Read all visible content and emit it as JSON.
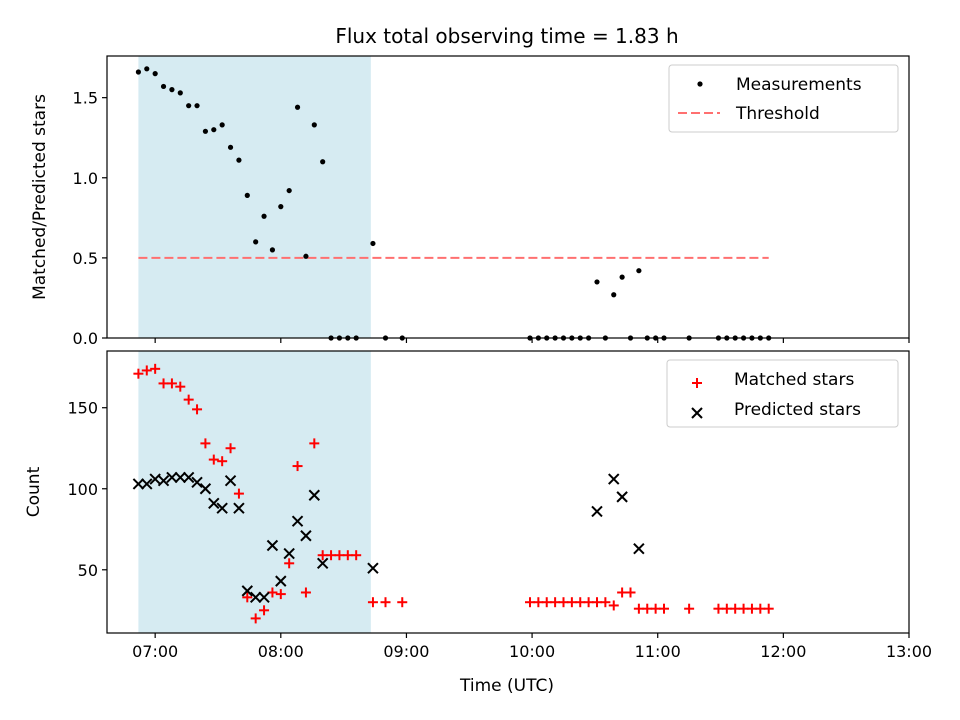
{
  "chart_data": [
    {
      "type": "scatter",
      "title": "Flux total observing time = 1.83 h",
      "xlabel": "",
      "ylabel": "Matched/Predicted stars",
      "x_ticks": [
        "07:00",
        "08:00",
        "09:00",
        "10:00",
        "11:00",
        "12:00",
        "13:00"
      ],
      "ylim": [
        0,
        1.76
      ],
      "y_ticks": [
        "0.0",
        "0.5",
        "1.0",
        "1.5"
      ],
      "xlim": [
        "06:37",
        "13:00"
      ],
      "shaded_region": {
        "from": "06:52",
        "to": "08:43",
        "color": "#add8e6"
      },
      "legend": {
        "placement": "top-right",
        "entries": [
          "Measurements",
          "Threshold"
        ]
      },
      "series": [
        {
          "name": "Measurements",
          "marker": "dot",
          "color": "#000000",
          "points": [
            [
              "06:52",
              1.66
            ],
            [
              "06:56",
              1.68
            ],
            [
              "07:00",
              1.65
            ],
            [
              "07:04",
              1.57
            ],
            [
              "07:08",
              1.55
            ],
            [
              "07:12",
              1.53
            ],
            [
              "07:16",
              1.45
            ],
            [
              "07:20",
              1.45
            ],
            [
              "07:24",
              1.29
            ],
            [
              "07:28",
              1.3
            ],
            [
              "07:32",
              1.33
            ],
            [
              "07:36",
              1.19
            ],
            [
              "07:40",
              1.11
            ],
            [
              "07:44",
              0.89
            ],
            [
              "07:48",
              0.6
            ],
            [
              "07:52",
              0.76
            ],
            [
              "07:56",
              0.55
            ],
            [
              "08:00",
              0.82
            ],
            [
              "08:04",
              0.92
            ],
            [
              "08:08",
              1.44
            ],
            [
              "08:12",
              0.51
            ],
            [
              "08:16",
              1.33
            ],
            [
              "08:20",
              1.1
            ],
            [
              "08:24",
              0.0
            ],
            [
              "08:28",
              0.0
            ],
            [
              "08:32",
              0.0
            ],
            [
              "08:36",
              0.0
            ],
            [
              "08:44",
              0.59
            ],
            [
              "08:50",
              0.0
            ],
            [
              "08:58",
              0.0
            ],
            [
              "09:59",
              0.0
            ],
            [
              "10:03",
              0.0
            ],
            [
              "10:07",
              0.0
            ],
            [
              "10:11",
              0.0
            ],
            [
              "10:15",
              0.0
            ],
            [
              "10:19",
              0.0
            ],
            [
              "10:23",
              0.0
            ],
            [
              "10:27",
              0.0
            ],
            [
              "10:31",
              0.35
            ],
            [
              "10:35",
              0.0
            ],
            [
              "10:39",
              0.27
            ],
            [
              "10:43",
              0.38
            ],
            [
              "10:47",
              0.0
            ],
            [
              "10:51",
              0.42
            ],
            [
              "10:55",
              0.0
            ],
            [
              "10:59",
              0.0
            ],
            [
              "11:03",
              0.0
            ],
            [
              "11:15",
              0.0
            ],
            [
              "11:29",
              0.0
            ],
            [
              "11:33",
              0.0
            ],
            [
              "11:37",
              0.0
            ],
            [
              "11:41",
              0.0
            ],
            [
              "11:45",
              0.0
            ],
            [
              "11:49",
              0.0
            ],
            [
              "11:53",
              0.0
            ]
          ]
        },
        {
          "name": "Threshold",
          "style": "dashed-line",
          "color": "#ff7070",
          "points": [
            [
              "06:52",
              0.5
            ],
            [
              "11:53",
              0.5
            ]
          ]
        }
      ]
    },
    {
      "type": "scatter",
      "title": "",
      "xlabel": "Time (UTC)",
      "ylabel": "Count",
      "x_ticks": [
        "07:00",
        "08:00",
        "09:00",
        "10:00",
        "11:00",
        "12:00",
        "13:00"
      ],
      "ylim": [
        11,
        185
      ],
      "y_ticks": [
        "50",
        "100",
        "150"
      ],
      "xlim": [
        "06:37",
        "13:00"
      ],
      "shaded_region": {
        "from": "06:52",
        "to": "08:43",
        "color": "#add8e6"
      },
      "legend": {
        "placement": "top-right",
        "entries": [
          "Matched stars",
          "Predicted stars"
        ]
      },
      "series": [
        {
          "name": "Matched stars",
          "marker": "plus",
          "color": "#ff0000",
          "points": [
            [
              "06:52",
              171
            ],
            [
              "06:56",
              173
            ],
            [
              "07:00",
              174
            ],
            [
              "07:04",
              165
            ],
            [
              "07:08",
              165
            ],
            [
              "07:12",
              163
            ],
            [
              "07:16",
              155
            ],
            [
              "07:20",
              149
            ],
            [
              "07:24",
              128
            ],
            [
              "07:28",
              118
            ],
            [
              "07:32",
              117
            ],
            [
              "07:36",
              125
            ],
            [
              "07:40",
              97
            ],
            [
              "07:44",
              33
            ],
            [
              "07:48",
              20
            ],
            [
              "07:52",
              25
            ],
            [
              "07:56",
              36
            ],
            [
              "08:00",
              35
            ],
            [
              "08:04",
              54
            ],
            [
              "08:08",
              114
            ],
            [
              "08:12",
              36
            ],
            [
              "08:16",
              128
            ],
            [
              "08:20",
              59
            ],
            [
              "08:24",
              59
            ],
            [
              "08:28",
              59
            ],
            [
              "08:32",
              59
            ],
            [
              "08:36",
              59
            ],
            [
              "08:44",
              30
            ],
            [
              "08:50",
              30
            ],
            [
              "08:58",
              30
            ],
            [
              "09:59",
              30
            ],
            [
              "10:03",
              30
            ],
            [
              "10:07",
              30
            ],
            [
              "10:11",
              30
            ],
            [
              "10:15",
              30
            ],
            [
              "10:19",
              30
            ],
            [
              "10:23",
              30
            ],
            [
              "10:27",
              30
            ],
            [
              "10:31",
              30
            ],
            [
              "10:35",
              30
            ],
            [
              "10:39",
              28
            ],
            [
              "10:43",
              36
            ],
            [
              "10:47",
              36
            ],
            [
              "10:51",
              26
            ],
            [
              "10:55",
              26
            ],
            [
              "10:59",
              26
            ],
            [
              "11:03",
              26
            ],
            [
              "11:15",
              26
            ],
            [
              "11:29",
              26
            ],
            [
              "11:33",
              26
            ],
            [
              "11:37",
              26
            ],
            [
              "11:41",
              26
            ],
            [
              "11:45",
              26
            ],
            [
              "11:49",
              26
            ],
            [
              "11:53",
              26
            ]
          ]
        },
        {
          "name": "Predicted stars",
          "marker": "x",
          "color": "#000000",
          "points": [
            [
              "06:52",
              103
            ],
            [
              "06:56",
              103
            ],
            [
              "07:00",
              106
            ],
            [
              "07:04",
              105
            ],
            [
              "07:08",
              107
            ],
            [
              "07:12",
              107
            ],
            [
              "07:16",
              107
            ],
            [
              "07:20",
              104
            ],
            [
              "07:24",
              100
            ],
            [
              "07:28",
              91
            ],
            [
              "07:32",
              88
            ],
            [
              "07:36",
              105
            ],
            [
              "07:40",
              88
            ],
            [
              "07:44",
              37
            ],
            [
              "07:48",
              33
            ],
            [
              "07:52",
              33
            ],
            [
              "07:56",
              65
            ],
            [
              "08:00",
              43
            ],
            [
              "08:04",
              60
            ],
            [
              "08:08",
              80
            ],
            [
              "08:12",
              71
            ],
            [
              "08:16",
              96
            ],
            [
              "08:20",
              54
            ],
            [
              "08:44",
              51
            ],
            [
              "10:31",
              86
            ],
            [
              "10:39",
              106
            ],
            [
              "10:43",
              95
            ],
            [
              "10:51",
              63
            ]
          ]
        }
      ]
    }
  ]
}
